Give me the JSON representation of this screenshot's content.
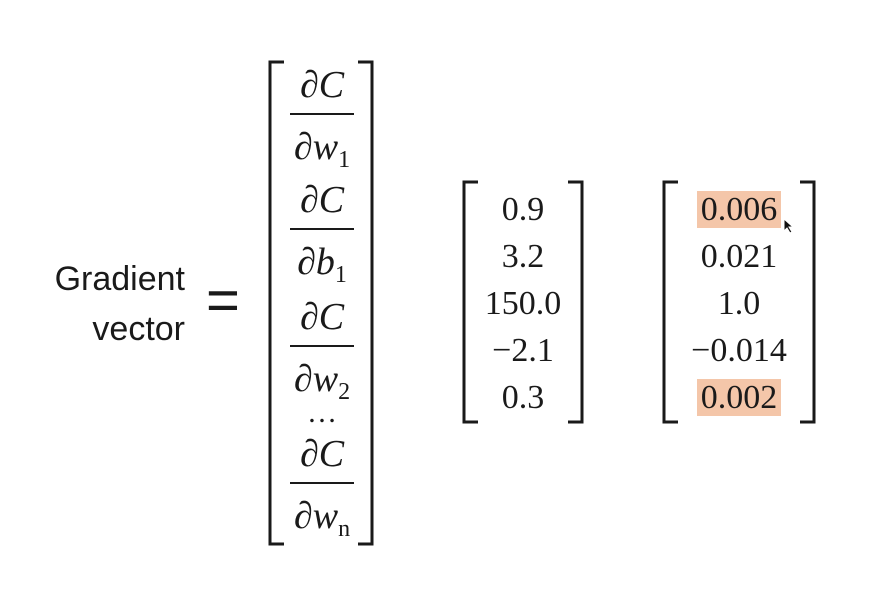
{
  "label": {
    "line1": "Gradient",
    "line2": "vector"
  },
  "equals": "=",
  "symbolic": {
    "numerator": "∂C",
    "partial": "∂",
    "entries": [
      {
        "var": "w",
        "sub": "1"
      },
      {
        "var": "b",
        "sub": "1"
      },
      {
        "var": "w",
        "sub": "2"
      },
      {
        "var": "w",
        "sub": "n"
      }
    ],
    "ellipsis": "…"
  },
  "vector_a": [
    "0.9",
    "3.2",
    "150.0",
    "−2.1",
    "0.3"
  ],
  "vector_b": [
    "0.006",
    "0.021",
    "1.0",
    "−0.014",
    "0.002"
  ],
  "highlight_color": "#f4c6a9"
}
